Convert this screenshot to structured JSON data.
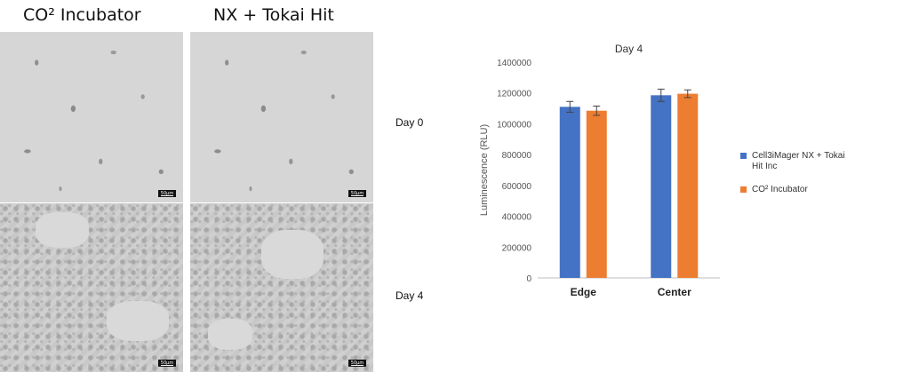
{
  "columns": {
    "co2": "CO² Incubator",
    "nx": "NX + Tokai Hit"
  },
  "rows": {
    "day0": "Day 0",
    "day4": "Day 4"
  },
  "scalebar_label": "50µm",
  "chart_data": {
    "type": "bar",
    "title": "Day 4",
    "ylabel": "Luminescence (RLU)",
    "xlabel": "",
    "categories": [
      "Edge",
      "Center"
    ],
    "ylim": [
      0,
      1400000
    ],
    "yticks": [
      "1400000",
      "1200000",
      "1000000",
      "800000",
      "600000",
      "400000",
      "200000",
      "0"
    ],
    "yticks_values": [
      1400000,
      1200000,
      1000000,
      800000,
      600000,
      400000,
      200000,
      0
    ],
    "grid": false,
    "legend_position": "right",
    "series": [
      {
        "name": "Cell3iMager NX + Tokai Hit Inc",
        "color": "#4472C4",
        "values": [
          1110000,
          1185000
        ],
        "errors": [
          35000,
          40000
        ]
      },
      {
        "name": "CO² Incubator",
        "color": "#ED7D31",
        "values": [
          1085000,
          1195000
        ],
        "errors": [
          30000,
          25000
        ]
      }
    ]
  }
}
